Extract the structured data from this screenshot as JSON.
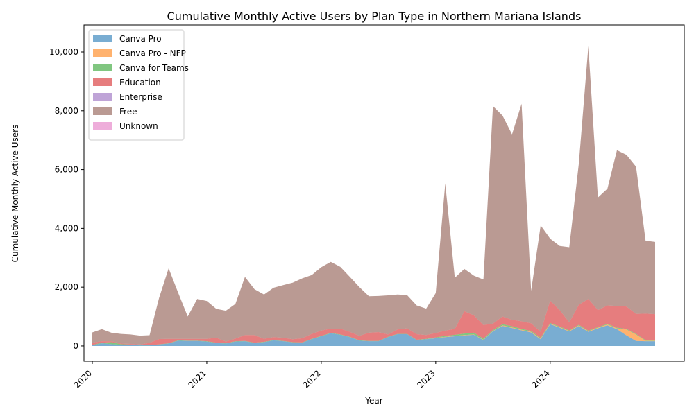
{
  "chart_data": {
    "type": "area",
    "title": "Cumulative Monthly Active Users by Plan Type in Northern Mariana Islands",
    "xlabel": "Year",
    "ylabel": "Cumulative Monthly Active Users",
    "x": [
      "2020-01",
      "2020-02",
      "2020-03",
      "2020-04",
      "2020-05",
      "2020-06",
      "2020-07",
      "2020-08",
      "2020-09",
      "2020-10",
      "2020-11",
      "2020-12",
      "2021-01",
      "2021-02",
      "2021-03",
      "2021-04",
      "2021-05",
      "2021-06",
      "2021-07",
      "2021-08",
      "2021-09",
      "2021-10",
      "2021-11",
      "2021-12",
      "2022-01",
      "2022-02",
      "2022-03",
      "2022-04",
      "2022-05",
      "2022-06",
      "2022-07",
      "2022-08",
      "2022-09",
      "2022-10",
      "2022-11",
      "2022-12",
      "2023-01",
      "2023-02",
      "2023-03",
      "2023-04",
      "2023-05",
      "2023-06",
      "2023-07",
      "2023-08",
      "2023-09",
      "2023-10",
      "2023-11",
      "2023-12",
      "2024-01",
      "2024-02",
      "2024-03",
      "2024-04",
      "2024-05",
      "2024-06",
      "2024-07",
      "2024-08",
      "2024-09",
      "2024-10",
      "2024-11",
      "2024-12"
    ],
    "x_ticks": [
      "2020",
      "2021",
      "2022",
      "2023",
      "2024"
    ],
    "y_ticks": [
      "0",
      "2,000",
      "4,000",
      "6,000",
      "8,000",
      "10,000"
    ],
    "ylim": [
      -520,
      10920
    ],
    "legend_position": "upper-left",
    "grid": false,
    "series": [
      {
        "name": "Canva Pro",
        "color": "#1f77b4",
        "values": [
          20,
          90,
          60,
          40,
          30,
          20,
          20,
          50,
          80,
          180,
          170,
          170,
          150,
          100,
          80,
          150,
          160,
          100,
          130,
          190,
          160,
          120,
          110,
          230,
          330,
          430,
          380,
          300,
          180,
          160,
          160,
          300,
          400,
          400,
          200,
          230,
          260,
          300,
          330,
          360,
          380,
          200,
          500,
          680,
          610,
          530,
          460,
          230,
          740,
          620,
          490,
          680,
          480,
          600,
          700,
          570,
          360,
          170,
          160,
          160
        ]
      },
      {
        "name": "Canva Pro - NFP",
        "color": "#ff7f0e",
        "values": [
          0,
          0,
          0,
          0,
          0,
          0,
          0,
          0,
          0,
          0,
          0,
          0,
          0,
          0,
          0,
          0,
          0,
          0,
          0,
          0,
          0,
          0,
          0,
          0,
          0,
          0,
          0,
          0,
          0,
          0,
          0,
          0,
          0,
          0,
          0,
          0,
          10,
          10,
          10,
          10,
          10,
          10,
          10,
          20,
          20,
          20,
          20,
          20,
          20,
          20,
          20,
          20,
          20,
          20,
          30,
          30,
          200,
          220,
          20,
          20
        ]
      },
      {
        "name": "Canva for Teams",
        "color": "#2ca02c",
        "values": [
          10,
          20,
          70,
          20,
          20,
          10,
          5,
          5,
          10,
          10,
          10,
          10,
          10,
          10,
          10,
          10,
          10,
          10,
          10,
          10,
          10,
          10,
          10,
          10,
          10,
          10,
          10,
          10,
          10,
          10,
          10,
          10,
          10,
          10,
          10,
          10,
          20,
          30,
          40,
          50,
          60,
          40,
          30,
          40,
          40,
          30,
          30,
          30,
          20,
          20,
          20,
          20,
          20,
          20,
          20,
          20,
          20,
          20,
          20,
          20
        ]
      },
      {
        "name": "Education",
        "color": "#d62728",
        "values": [
          80,
          50,
          30,
          20,
          20,
          20,
          80,
          180,
          150,
          50,
          60,
          60,
          80,
          170,
          60,
          90,
          200,
          260,
          100,
          100,
          110,
          100,
          140,
          170,
          180,
          150,
          200,
          170,
          150,
          280,
          300,
          80,
          150,
          190,
          190,
          130,
          150,
          180,
          200,
          760,
          590,
          460,
          220,
          260,
          220,
          260,
          260,
          200,
          760,
          560,
          270,
          680,
          1080,
          580,
          630,
          740,
          760,
          680,
          900,
          880
        ]
      },
      {
        "name": "Enterprise",
        "color": "#9467bd",
        "values": [
          0,
          0,
          0,
          0,
          0,
          0,
          0,
          0,
          0,
          0,
          0,
          0,
          0,
          0,
          0,
          0,
          0,
          0,
          0,
          0,
          0,
          0,
          0,
          0,
          0,
          0,
          0,
          0,
          0,
          0,
          0,
          0,
          0,
          0,
          0,
          0,
          0,
          0,
          0,
          0,
          0,
          0,
          0,
          0,
          0,
          0,
          0,
          0,
          0,
          0,
          0,
          0,
          0,
          0,
          0,
          0,
          0,
          0,
          0,
          0
        ]
      },
      {
        "name": "Free",
        "color": "#8c564b",
        "values": [
          350,
          410,
          290,
          330,
          320,
          300,
          260,
          1400,
          2400,
          1570,
          760,
          1360,
          1290,
          980,
          1050,
          1180,
          1980,
          1560,
          1510,
          1680,
          1790,
          1920,
          2040,
          2000,
          2160,
          2270,
          2100,
          1870,
          1660,
          1240,
          1230,
          1330,
          1190,
          1130,
          980,
          900,
          1360,
          5010,
          1740,
          1440,
          1350,
          1550,
          7400,
          6840,
          6310,
          7400,
          1100,
          3620,
          2110,
          2180,
          2560,
          4800,
          8600,
          3830,
          3970,
          5300,
          5160,
          5010,
          2480,
          2460
        ]
      },
      {
        "name": "Unknown",
        "color": "#e377c2",
        "values": [
          0,
          0,
          0,
          0,
          0,
          0,
          0,
          0,
          0,
          0,
          0,
          0,
          0,
          0,
          0,
          0,
          0,
          0,
          0,
          0,
          0,
          0,
          0,
          0,
          0,
          0,
          0,
          0,
          0,
          0,
          0,
          0,
          0,
          0,
          0,
          0,
          0,
          0,
          0,
          0,
          0,
          0,
          0,
          0,
          0,
          0,
          0,
          0,
          0,
          0,
          0,
          0,
          0,
          0,
          0,
          0,
          0,
          0,
          0,
          0
        ]
      }
    ]
  }
}
